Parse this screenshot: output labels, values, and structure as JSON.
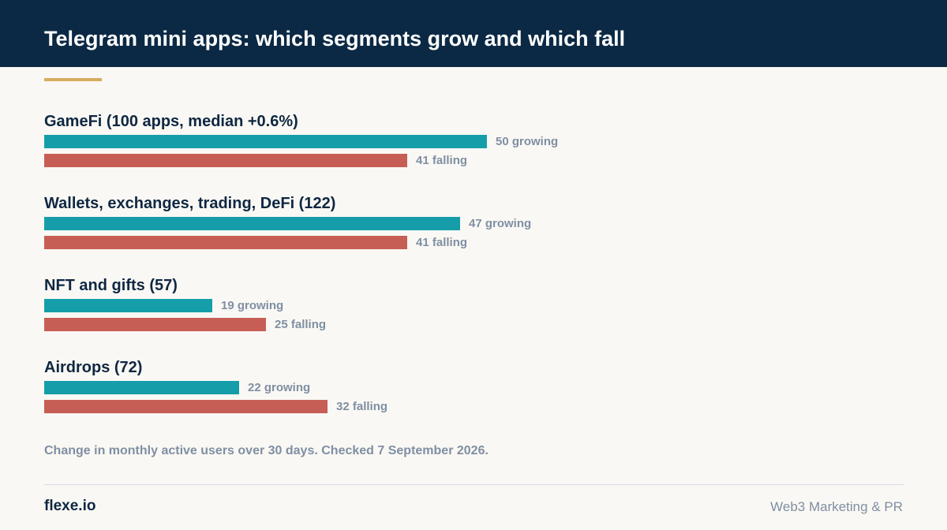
{
  "header": {
    "title": "Telegram mini apps: which segments grow and which fall"
  },
  "colors": {
    "header_bg": "#0b2944",
    "accent": "#d6ac5e",
    "growing": "#159ea9",
    "falling": "#c65e55",
    "page_bg": "#faf8f4"
  },
  "chart_data": {
    "type": "bar",
    "orientation": "horizontal",
    "title": "Telegram mini apps: which segments grow and which fall",
    "categories": [
      "GameFi (100 apps, median +0.6%)",
      "Wallets, exchanges, trading, DeFi (122)",
      "NFT and gifts (57)",
      "Airdrops (72)"
    ],
    "series": [
      {
        "key": "growing",
        "suffix": "growing",
        "values": [
          50,
          47,
          19,
          22
        ]
      },
      {
        "key": "falling",
        "suffix": "falling",
        "values": [
          41,
          41,
          25,
          32
        ]
      }
    ],
    "xlim": [
      0,
      50
    ],
    "grid": false,
    "legend": "none"
  },
  "footnote": "Change in monthly active users over 30 days. Checked 7 September 2026.",
  "footer": {
    "brand": "flexe.io",
    "tagline": "Web3 Marketing & PR"
  }
}
